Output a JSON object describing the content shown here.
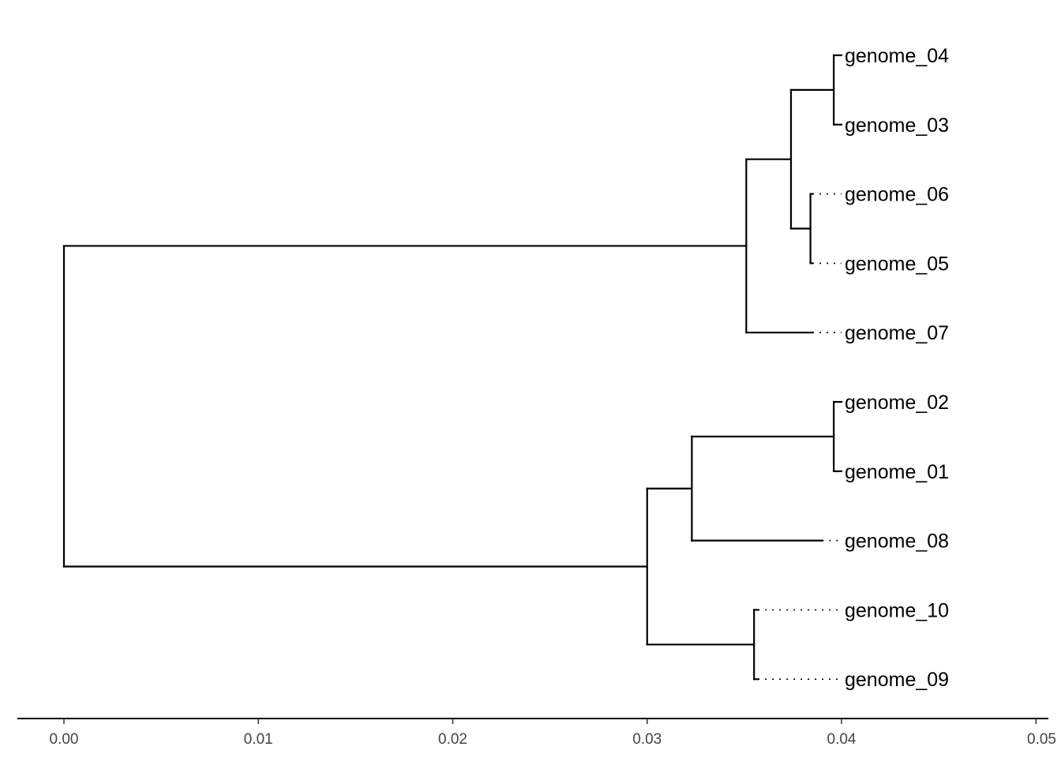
{
  "chart_data": {
    "type": "dendrogram",
    "xlim": [
      0,
      0.05
    ],
    "x_ticks": [
      {
        "value": 0.0,
        "label": "0.00"
      },
      {
        "value": 0.01,
        "label": "0.01"
      },
      {
        "value": 0.02,
        "label": "0.02"
      },
      {
        "value": 0.03,
        "label": "0.03"
      },
      {
        "value": 0.04,
        "label": "0.04"
      },
      {
        "value": 0.05,
        "label": "0.05"
      }
    ],
    "label_x": 0.04,
    "tips": [
      {
        "id": "g04",
        "label": "genome_04",
        "order": 0,
        "depth": 0.04
      },
      {
        "id": "g03",
        "label": "genome_03",
        "order": 1,
        "depth": 0.04
      },
      {
        "id": "g06",
        "label": "genome_06",
        "order": 2,
        "depth": 0.0385
      },
      {
        "id": "g05",
        "label": "genome_05",
        "order": 3,
        "depth": 0.0385
      },
      {
        "id": "g07",
        "label": "genome_07",
        "order": 4,
        "depth": 0.0385
      },
      {
        "id": "g02",
        "label": "genome_02",
        "order": 5,
        "depth": 0.04
      },
      {
        "id": "g01",
        "label": "genome_01",
        "order": 6,
        "depth": 0.04
      },
      {
        "id": "g08",
        "label": "genome_08",
        "order": 7,
        "depth": 0.039
      },
      {
        "id": "g10",
        "label": "genome_10",
        "order": 8,
        "depth": 0.0357
      },
      {
        "id": "g09",
        "label": "genome_09",
        "order": 9,
        "depth": 0.0357
      }
    ],
    "nodes": [
      {
        "id": "n_g03_g04",
        "height": 0.0396,
        "children": [
          "g04",
          "g03"
        ]
      },
      {
        "id": "n_g05_g06",
        "height": 0.0384,
        "children": [
          "g06",
          "g05"
        ]
      },
      {
        "id": "n_a",
        "height": 0.0374,
        "children": [
          "n_g03_g04",
          "n_g05_g06"
        ]
      },
      {
        "id": "n_b",
        "height": 0.0351,
        "children": [
          "n_a",
          "g07"
        ]
      },
      {
        "id": "n_g01_g02",
        "height": 0.0396,
        "children": [
          "g02",
          "g01"
        ]
      },
      {
        "id": "n_c",
        "height": 0.0323,
        "children": [
          "n_g01_g02",
          "g08"
        ]
      },
      {
        "id": "n_g09_g10",
        "height": 0.0355,
        "children": [
          "g10",
          "g09"
        ]
      },
      {
        "id": "n_d",
        "height": 0.03,
        "children": [
          "n_c",
          "n_g09_g10"
        ]
      },
      {
        "id": "root",
        "height": 0.0,
        "children": [
          "n_b",
          "n_d"
        ]
      }
    ]
  }
}
